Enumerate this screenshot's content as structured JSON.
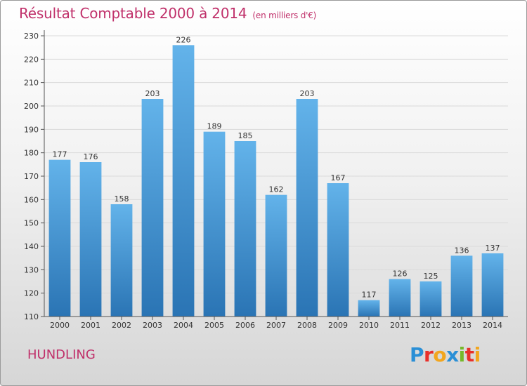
{
  "header": {
    "title": "Résultat Comptable 2000 à 2014",
    "subtitle": "(en milliers d'€)"
  },
  "commune": "HUNDLING",
  "logo_text": "Proxiti",
  "colors": {
    "title": "#c0306a",
    "bar_top": "#63b3ea",
    "bar_bottom": "#2a74b4"
  },
  "chart_data": {
    "type": "bar",
    "title": "Résultat Comptable 2000 à 2014",
    "subtitle": "(en milliers d'€)",
    "xlabel": "",
    "ylabel": "",
    "categories": [
      "2000",
      "2001",
      "2002",
      "2003",
      "2004",
      "2005",
      "2006",
      "2007",
      "2008",
      "2009",
      "2010",
      "2011",
      "2012",
      "2013",
      "2014"
    ],
    "values": [
      177,
      176,
      158,
      203,
      226,
      189,
      185,
      162,
      203,
      167,
      117,
      126,
      125,
      136,
      137
    ],
    "ylim": [
      110,
      230
    ],
    "yticks": [
      110,
      120,
      130,
      140,
      150,
      160,
      170,
      180,
      190,
      200,
      210,
      220,
      230
    ],
    "grid": true,
    "legend": "none"
  }
}
